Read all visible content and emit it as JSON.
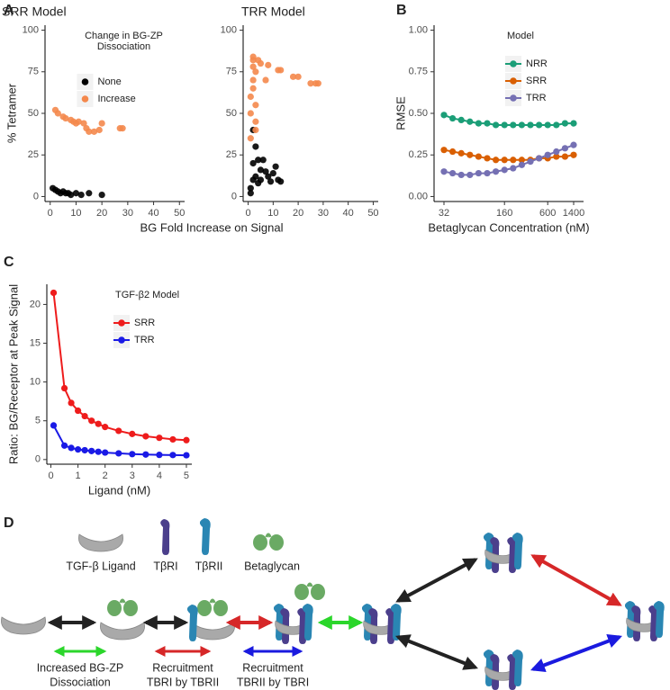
{
  "chart_data": [
    {
      "type": "scatter",
      "label": "A",
      "title": "SRR Model",
      "ylabel": "% Tetramer",
      "xlabel": "BG Fold Increase on Signal",
      "xlim": [
        -2,
        52
      ],
      "xticks": [
        0,
        10,
        20,
        30,
        40,
        50
      ],
      "ylim": [
        -3,
        103
      ],
      "yticks": [
        0,
        25,
        50,
        75,
        100
      ],
      "legend": "top-center",
      "legend_title": [
        "Change in BG-ZP",
        "Dissociation"
      ],
      "series": [
        {
          "name": "None",
          "color": "#000000",
          "x": [
            1,
            2,
            3,
            4,
            5,
            6,
            7,
            8,
            10,
            12,
            15,
            20
          ],
          "values": [
            5,
            4,
            3,
            2,
            3,
            2,
            2,
            1,
            2,
            1,
            2,
            1
          ]
        },
        {
          "name": "Increase",
          "color": "#f4884c",
          "x": [
            2,
            3,
            5,
            6,
            8,
            9,
            10,
            11,
            13,
            14,
            15,
            17,
            19,
            20,
            27,
            28
          ],
          "values": [
            52,
            50,
            48,
            47,
            46,
            45,
            44,
            45,
            44,
            41,
            39,
            39,
            40,
            44,
            41,
            41
          ]
        }
      ]
    },
    {
      "type": "scatter",
      "title": "TRR Model",
      "xlim": [
        -2,
        52
      ],
      "xticks": [
        0,
        10,
        20,
        30,
        40,
        50
      ],
      "ylim": [
        -3,
        103
      ],
      "yticks": [
        0,
        25,
        50,
        75,
        100
      ],
      "series": [
        {
          "color": "#000000",
          "x": [
            1,
            1,
            2,
            2,
            2,
            3,
            3,
            4,
            4,
            5,
            5,
            6,
            7,
            8,
            9,
            10,
            11,
            12,
            13
          ],
          "values": [
            2,
            5,
            10,
            20,
            40,
            30,
            12,
            8,
            22,
            16,
            10,
            22,
            15,
            12,
            9,
            14,
            18,
            10,
            9
          ]
        },
        {
          "color": "#f4884c",
          "x": [
            1,
            1,
            1,
            2,
            2,
            2,
            2,
            2,
            3,
            3,
            3,
            3,
            4,
            5,
            7,
            8,
            12,
            13,
            18,
            20,
            25,
            27,
            28
          ],
          "values": [
            35,
            50,
            60,
            65,
            70,
            78,
            82,
            84,
            75,
            55,
            45,
            40,
            82,
            80,
            70,
            79,
            76,
            76,
            72,
            72,
            68,
            68,
            68
          ]
        }
      ]
    },
    {
      "type": "line",
      "label": "B",
      "ylabel": "RMSE",
      "xlabel": "Betaglycan Concentration (nM)",
      "categories": [
        "32",
        null,
        null,
        null,
        null,
        null,
        null,
        "160",
        null,
        null,
        null,
        null,
        "600",
        null,
        null,
        "1400"
      ],
      "ylim": [
        -0.03,
        1.03
      ],
      "yticks": [
        {
          "value": 0,
          "label": "0.00"
        },
        {
          "value": 0.25,
          "label": "0.25"
        },
        {
          "value": 0.5,
          "label": "0.50"
        },
        {
          "value": 0.75,
          "label": "0.75"
        },
        {
          "value": 1,
          "label": "1.00"
        }
      ],
      "legend": "top-right",
      "legend_title": "Model",
      "series": [
        {
          "name": "NRR",
          "color": "#1b9e77",
          "values": [
            0.49,
            0.47,
            0.46,
            0.45,
            0.44,
            0.44,
            0.43,
            0.43,
            0.43,
            0.43,
            0.43,
            0.43,
            0.43,
            0.43,
            0.44,
            0.44
          ]
        },
        {
          "name": "SRR",
          "color": "#d95f02",
          "values": [
            0.28,
            0.27,
            0.26,
            0.25,
            0.24,
            0.23,
            0.22,
            0.22,
            0.22,
            0.22,
            0.22,
            0.23,
            0.23,
            0.24,
            0.24,
            0.25
          ]
        },
        {
          "name": "TRR",
          "color": "#7570b3",
          "values": [
            0.15,
            0.14,
            0.13,
            0.13,
            0.14,
            0.14,
            0.15,
            0.16,
            0.17,
            0.19,
            0.21,
            0.23,
            0.25,
            0.27,
            0.29,
            0.31
          ]
        }
      ]
    },
    {
      "type": "line",
      "label": "C",
      "ylabel": "Ratio: BG/Receptor at Peak Signal",
      "xlabel": "Ligand (nM)",
      "x": [
        0.1,
        0.5,
        0.75,
        1,
        1.25,
        1.5,
        1.75,
        2,
        2.5,
        3,
        3.5,
        4,
        4.5,
        5
      ],
      "xlim": [
        -0.15,
        5.2
      ],
      "xticks": [
        0,
        1,
        2,
        3,
        4,
        5
      ],
      "ylim": [
        -0.6,
        22.6
      ],
      "yticks": [
        0,
        5,
        10,
        15,
        20
      ],
      "legend": "top-right",
      "legend_title": "TGF-β2 Model",
      "series": [
        {
          "name": "SRR",
          "color": "#ee1c1c",
          "values": [
            21.5,
            9.2,
            7.3,
            6.3,
            5.6,
            5.0,
            4.6,
            4.2,
            3.7,
            3.3,
            3.0,
            2.8,
            2.6,
            2.5
          ]
        },
        {
          "name": "TRR",
          "color": "#1a1ae6",
          "values": [
            4.4,
            1.8,
            1.5,
            1.3,
            1.2,
            1.1,
            1.0,
            0.9,
            0.8,
            0.7,
            0.65,
            0.6,
            0.58,
            0.55
          ]
        }
      ]
    }
  ],
  "diagram": {
    "label": "D",
    "legend": [
      "TGF-β Ligand",
      "TβRI",
      "TβRII",
      "Betaglycan"
    ],
    "arrow_key": [
      [
        "Increased BG-ZP",
        "Dissociation"
      ],
      [
        "Recruitment",
        "TBRI by TBRII"
      ],
      [
        "Recruitment",
        "TBRII by TBRI"
      ]
    ]
  }
}
